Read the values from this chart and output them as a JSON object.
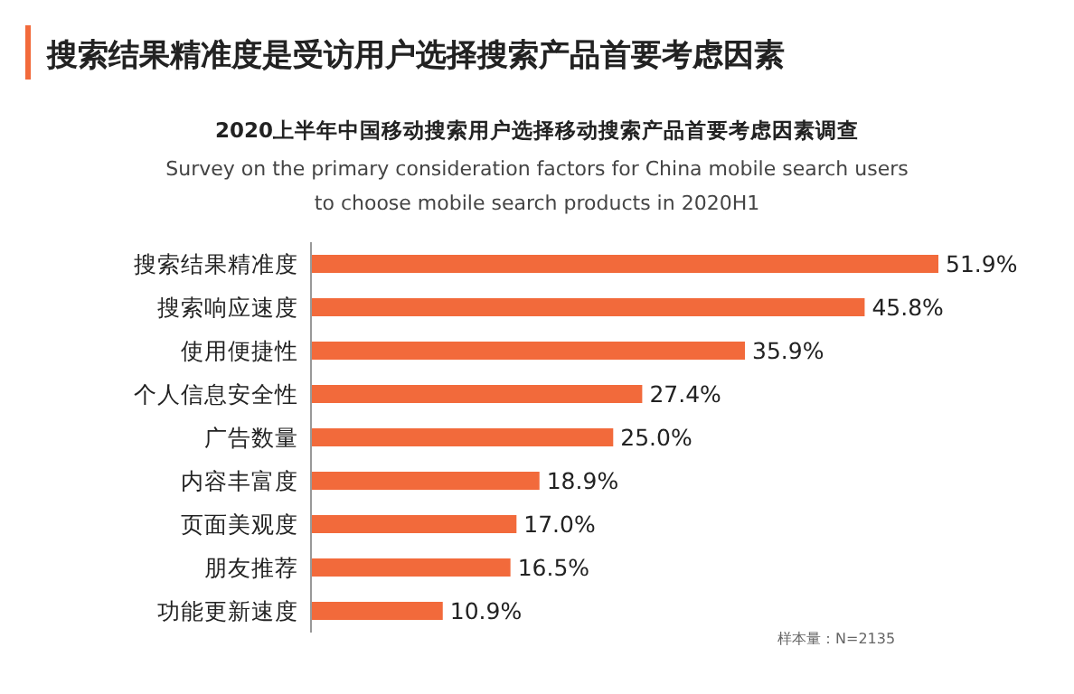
{
  "chart_data": {
    "type": "bar",
    "orientation": "horizontal",
    "title": "搜索结果精准度是受访用户选择搜索产品首要考虑因素",
    "subtitle": "2020上半年中国移动搜索用户选择移动搜索产品首要考虑因素调查",
    "annotations": [
      "Survey on the primary consideration factors for China mobile search users to choose mobile search products in 2020H1",
      "样本量：N=2135"
    ],
    "categories": [
      "搜索结果精准度",
      "搜索响应速度",
      "使用便捷性",
      "个人信息安全性",
      "广告数量",
      "内容丰富度",
      "页面美观度",
      "朋友推荐",
      "功能更新速度"
    ],
    "values": [
      51.9,
      45.8,
      35.9,
      27.4,
      25.0,
      18.9,
      17.0,
      16.5,
      10.9
    ],
    "value_labels": [
      "51.9%",
      "45.8%",
      "35.9%",
      "27.4%",
      "25.0%",
      "18.9%",
      "17.0%",
      "16.5%",
      "10.9%"
    ],
    "color": "#f26a3b"
  }
}
